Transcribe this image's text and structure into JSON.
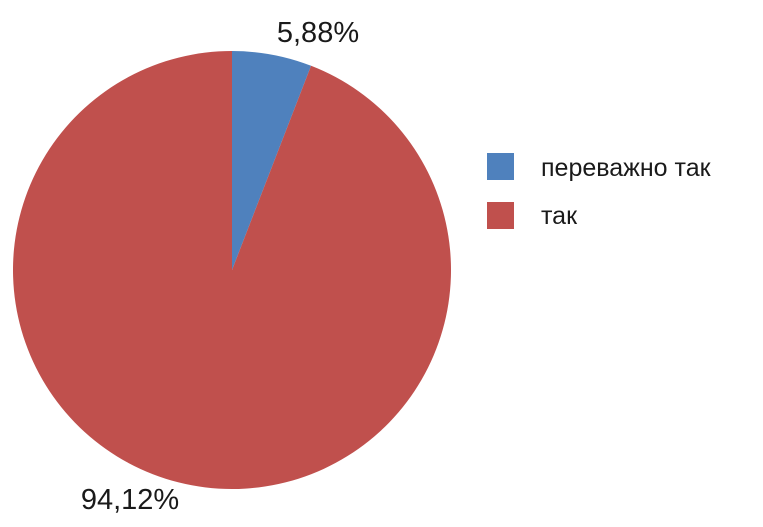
{
  "chart_data": {
    "type": "pie",
    "categories": [
      "переважно так",
      "так"
    ],
    "values": [
      5.88,
      94.12
    ],
    "data_labels": [
      "5,88%",
      "94,12%"
    ],
    "colors": [
      "#4f81bd",
      "#c0504d"
    ],
    "start_angle_deg": 0,
    "direction": "clockwise",
    "legend": {
      "position": "right",
      "entries": [
        "переважно так",
        "так"
      ]
    }
  }
}
